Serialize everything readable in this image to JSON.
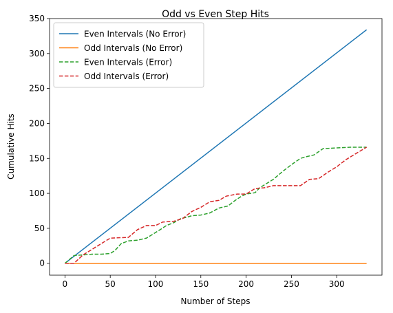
{
  "chart_data": {
    "type": "line",
    "title": "Odd vs Even Step Hits",
    "xlabel": "Number of Steps",
    "ylabel": "Cumulative Hits",
    "xlim": [
      -17,
      350
    ],
    "ylim": [
      -17,
      350
    ],
    "xticks": [
      0,
      50,
      100,
      150,
      200,
      250,
      300
    ],
    "yticks": [
      0,
      50,
      100,
      150,
      200,
      250,
      300,
      350
    ],
    "grid": false,
    "legend_position": "top-left",
    "series": [
      {
        "name": "Even Intervals (No Error)",
        "color": "#1f77b4",
        "dash": "solid",
        "points": [
          [
            0,
            0
          ],
          [
            333,
            334
          ]
        ]
      },
      {
        "name": "Odd Intervals (No Error)",
        "color": "#ff7f0e",
        "dash": "solid",
        "points": [
          [
            0,
            0
          ],
          [
            333,
            0
          ]
        ]
      },
      {
        "name": "Even Intervals (Error)",
        "color": "#2ca02c",
        "dash": "dashed",
        "points": [
          [
            0,
            0
          ],
          [
            10,
            11
          ],
          [
            20,
            12
          ],
          [
            30,
            13
          ],
          [
            40,
            13
          ],
          [
            50,
            14
          ],
          [
            55,
            18
          ],
          [
            62,
            28
          ],
          [
            70,
            32
          ],
          [
            80,
            33
          ],
          [
            90,
            36
          ],
          [
            100,
            44
          ],
          [
            105,
            48
          ],
          [
            112,
            54
          ],
          [
            120,
            58
          ],
          [
            128,
            64
          ],
          [
            135,
            66
          ],
          [
            140,
            68
          ],
          [
            150,
            69
          ],
          [
            160,
            72
          ],
          [
            170,
            79
          ],
          [
            180,
            82
          ],
          [
            188,
            90
          ],
          [
            195,
            96
          ],
          [
            200,
            99
          ],
          [
            210,
            101
          ],
          [
            215,
            108
          ],
          [
            230,
            120
          ],
          [
            240,
            131
          ],
          [
            250,
            141
          ],
          [
            260,
            150
          ],
          [
            265,
            152
          ],
          [
            275,
            155
          ],
          [
            285,
            164
          ],
          [
            300,
            165
          ],
          [
            315,
            166
          ],
          [
            333,
            166
          ]
        ]
      },
      {
        "name": "Odd Intervals (Error)",
        "color": "#d62728",
        "dash": "dashed",
        "points": [
          [
            0,
            0
          ],
          [
            10,
            0
          ],
          [
            20,
            12
          ],
          [
            30,
            20
          ],
          [
            40,
            28
          ],
          [
            50,
            36
          ],
          [
            70,
            37
          ],
          [
            80,
            48
          ],
          [
            90,
            54
          ],
          [
            100,
            54
          ],
          [
            108,
            59
          ],
          [
            120,
            60
          ],
          [
            130,
            64
          ],
          [
            140,
            74
          ],
          [
            150,
            80
          ],
          [
            160,
            88
          ],
          [
            170,
            90
          ],
          [
            178,
            96
          ],
          [
            190,
            99
          ],
          [
            200,
            99
          ],
          [
            210,
            107
          ],
          [
            220,
            108
          ],
          [
            230,
            111
          ],
          [
            260,
            111
          ],
          [
            270,
            120
          ],
          [
            280,
            121
          ],
          [
            290,
            130
          ],
          [
            300,
            138
          ],
          [
            310,
            148
          ],
          [
            320,
            156
          ],
          [
            333,
            166
          ]
        ]
      }
    ]
  }
}
